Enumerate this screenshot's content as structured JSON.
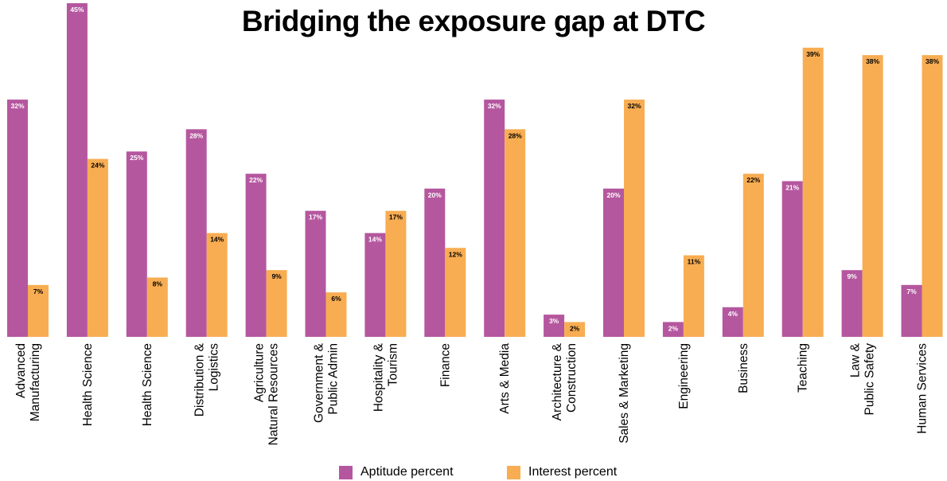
{
  "colors": {
    "aptitude": "#b5579f",
    "interest": "#f8ad52"
  },
  "chart_data": {
    "type": "bar",
    "title": "Bridging the exposure gap at DTC",
    "categories": [
      [
        "Advanced",
        "Manufacturing"
      ],
      [
        "Health Science"
      ],
      [
        "Health Science"
      ],
      [
        "Distribution &",
        "Logistics"
      ],
      [
        "Agriculture",
        "Natural Resources"
      ],
      [
        "Government &",
        "Public Admin"
      ],
      [
        "Hospitality &",
        "Tourism"
      ],
      [
        "Finance"
      ],
      [
        "Arts & Media"
      ],
      [
        "Architecture &",
        "Construction"
      ],
      [
        "Sales & Marketing"
      ],
      [
        "Engineering"
      ],
      [
        "Business"
      ],
      [
        "Teaching"
      ],
      [
        "Law &",
        "Public Safety"
      ],
      [
        "Human Services"
      ]
    ],
    "series": [
      {
        "name": "Aptitude percent",
        "values": [
          32,
          45,
          25,
          28,
          22,
          17,
          14,
          20,
          32,
          3,
          20,
          2,
          4,
          21,
          9,
          7
        ],
        "labels": [
          "32%",
          "45%",
          "25%",
          "28%",
          "22%",
          "17%",
          "14%",
          "20%",
          "32%",
          "3%",
          "20%",
          "2%",
          "4%",
          "21%",
          "9%",
          "7%"
        ]
      },
      {
        "name": "Interest percent",
        "values": [
          7,
          24,
          8,
          14,
          9,
          6,
          17,
          12,
          28,
          2,
          32,
          11,
          22,
          39,
          38,
          38
        ],
        "labels": [
          "7%",
          "24%",
          "8%",
          "14%",
          "9%",
          "6%",
          "17%",
          "12%",
          "28%",
          "2%",
          "32%",
          "11%",
          "22%",
          "39%",
          "38%",
          "38%"
        ]
      }
    ],
    "ylim": [
      0,
      45
    ],
    "grid": false,
    "legend_position": "bottom"
  }
}
